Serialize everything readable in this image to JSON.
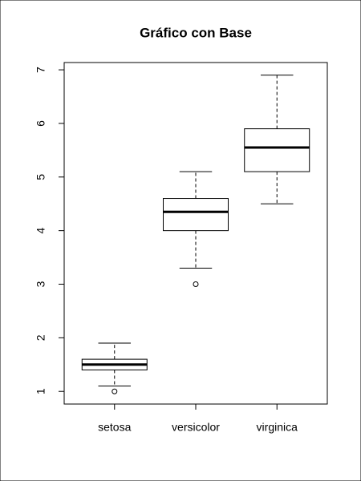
{
  "chart_data": {
    "type": "boxplot",
    "title": "Gráfico con Base",
    "categories": [
      "setosa",
      "versicolor",
      "virginica"
    ],
    "boxes": [
      {
        "min": 1.1,
        "q1": 1.4,
        "median": 1.5,
        "q3": 1.6,
        "max": 1.9,
        "outliers": [
          1.0
        ]
      },
      {
        "min": 3.3,
        "q1": 4.0,
        "median": 4.35,
        "q3": 4.6,
        "max": 5.1,
        "outliers": [
          3.0
        ]
      },
      {
        "min": 4.5,
        "q1": 5.1,
        "median": 5.55,
        "q3": 5.9,
        "max": 6.9,
        "outliers": []
      }
    ],
    "ylim": [
      0.764,
      7.136
    ],
    "yticks": [
      1,
      2,
      3,
      4,
      5,
      6,
      7
    ],
    "grid": false
  }
}
